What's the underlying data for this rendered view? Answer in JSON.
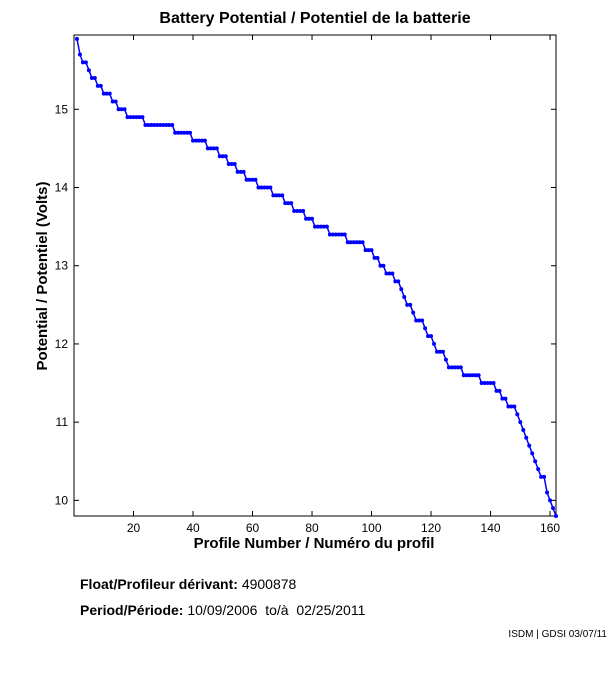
{
  "chart_data": {
    "type": "line",
    "title": "Battery Potential / Potentiel de la batterie",
    "xlabel": "Profile Number / Numéro du profil",
    "ylabel": "Potential / Potentiel (Volts)",
    "xlim": [
      0,
      162
    ],
    "ylim": [
      9.8,
      15.95
    ],
    "xticks": [
      20,
      40,
      60,
      80,
      100,
      120,
      140,
      160
    ],
    "yticks": [
      10,
      11,
      12,
      13,
      14,
      15
    ],
    "grid": false,
    "series_color": "#0000ff",
    "points": [
      [
        1,
        15.9
      ],
      [
        2,
        15.7
      ],
      [
        3,
        15.6
      ],
      [
        4,
        15.6
      ],
      [
        5,
        15.5
      ],
      [
        6,
        15.4
      ],
      [
        7,
        15.4
      ],
      [
        8,
        15.3
      ],
      [
        9,
        15.3
      ],
      [
        10,
        15.2
      ],
      [
        11,
        15.2
      ],
      [
        12,
        15.2
      ],
      [
        13,
        15.1
      ],
      [
        14,
        15.1
      ],
      [
        15,
        15.0
      ],
      [
        16,
        15.0
      ],
      [
        17,
        15.0
      ],
      [
        18,
        14.9
      ],
      [
        19,
        14.9
      ],
      [
        20,
        14.9
      ],
      [
        21,
        14.9
      ],
      [
        22,
        14.9
      ],
      [
        23,
        14.9
      ],
      [
        24,
        14.8
      ],
      [
        25,
        14.8
      ],
      [
        26,
        14.8
      ],
      [
        27,
        14.8
      ],
      [
        28,
        14.8
      ],
      [
        29,
        14.8
      ],
      [
        30,
        14.8
      ],
      [
        31,
        14.8
      ],
      [
        32,
        14.8
      ],
      [
        33,
        14.8
      ],
      [
        34,
        14.7
      ],
      [
        35,
        14.7
      ],
      [
        36,
        14.7
      ],
      [
        37,
        14.7
      ],
      [
        38,
        14.7
      ],
      [
        39,
        14.7
      ],
      [
        40,
        14.6
      ],
      [
        41,
        14.6
      ],
      [
        42,
        14.6
      ],
      [
        43,
        14.6
      ],
      [
        44,
        14.6
      ],
      [
        45,
        14.5
      ],
      [
        46,
        14.5
      ],
      [
        47,
        14.5
      ],
      [
        48,
        14.5
      ],
      [
        49,
        14.4
      ],
      [
        50,
        14.4
      ],
      [
        51,
        14.4
      ],
      [
        52,
        14.3
      ],
      [
        53,
        14.3
      ],
      [
        54,
        14.3
      ],
      [
        55,
        14.2
      ],
      [
        56,
        14.2
      ],
      [
        57,
        14.2
      ],
      [
        58,
        14.1
      ],
      [
        59,
        14.1
      ],
      [
        60,
        14.1
      ],
      [
        61,
        14.1
      ],
      [
        62,
        14.0
      ],
      [
        63,
        14.0
      ],
      [
        64,
        14.0
      ],
      [
        65,
        14.0
      ],
      [
        66,
        14.0
      ],
      [
        67,
        13.9
      ],
      [
        68,
        13.9
      ],
      [
        69,
        13.9
      ],
      [
        70,
        13.9
      ],
      [
        71,
        13.8
      ],
      [
        72,
        13.8
      ],
      [
        73,
        13.8
      ],
      [
        74,
        13.7
      ],
      [
        75,
        13.7
      ],
      [
        76,
        13.7
      ],
      [
        77,
        13.7
      ],
      [
        78,
        13.6
      ],
      [
        79,
        13.6
      ],
      [
        80,
        13.6
      ],
      [
        81,
        13.5
      ],
      [
        82,
        13.5
      ],
      [
        83,
        13.5
      ],
      [
        84,
        13.5
      ],
      [
        85,
        13.5
      ],
      [
        86,
        13.4
      ],
      [
        87,
        13.4
      ],
      [
        88,
        13.4
      ],
      [
        89,
        13.4
      ],
      [
        90,
        13.4
      ],
      [
        91,
        13.4
      ],
      [
        92,
        13.3
      ],
      [
        93,
        13.3
      ],
      [
        94,
        13.3
      ],
      [
        95,
        13.3
      ],
      [
        96,
        13.3
      ],
      [
        97,
        13.3
      ],
      [
        98,
        13.2
      ],
      [
        99,
        13.2
      ],
      [
        100,
        13.2
      ],
      [
        101,
        13.1
      ],
      [
        102,
        13.1
      ],
      [
        103,
        13.0
      ],
      [
        104,
        13.0
      ],
      [
        105,
        12.9
      ],
      [
        106,
        12.9
      ],
      [
        107,
        12.9
      ],
      [
        108,
        12.8
      ],
      [
        109,
        12.8
      ],
      [
        110,
        12.7
      ],
      [
        111,
        12.6
      ],
      [
        112,
        12.5
      ],
      [
        113,
        12.5
      ],
      [
        114,
        12.4
      ],
      [
        115,
        12.3
      ],
      [
        116,
        12.3
      ],
      [
        117,
        12.3
      ],
      [
        118,
        12.2
      ],
      [
        119,
        12.1
      ],
      [
        120,
        12.1
      ],
      [
        121,
        12.0
      ],
      [
        122,
        11.9
      ],
      [
        123,
        11.9
      ],
      [
        124,
        11.9
      ],
      [
        125,
        11.8
      ],
      [
        126,
        11.7
      ],
      [
        127,
        11.7
      ],
      [
        128,
        11.7
      ],
      [
        129,
        11.7
      ],
      [
        130,
        11.7
      ],
      [
        131,
        11.6
      ],
      [
        132,
        11.6
      ],
      [
        133,
        11.6
      ],
      [
        134,
        11.6
      ],
      [
        135,
        11.6
      ],
      [
        136,
        11.6
      ],
      [
        137,
        11.5
      ],
      [
        138,
        11.5
      ],
      [
        139,
        11.5
      ],
      [
        140,
        11.5
      ],
      [
        141,
        11.5
      ],
      [
        142,
        11.4
      ],
      [
        143,
        11.4
      ],
      [
        144,
        11.3
      ],
      [
        145,
        11.3
      ],
      [
        146,
        11.2
      ],
      [
        147,
        11.2
      ],
      [
        148,
        11.2
      ],
      [
        149,
        11.1
      ],
      [
        150,
        11.0
      ],
      [
        151,
        10.9
      ],
      [
        152,
        10.8
      ],
      [
        153,
        10.7
      ],
      [
        154,
        10.6
      ],
      [
        155,
        10.5
      ],
      [
        156,
        10.4
      ],
      [
        157,
        10.3
      ],
      [
        158,
        10.3
      ],
      [
        159,
        10.1
      ],
      [
        160,
        10.0
      ],
      [
        161,
        9.9
      ],
      [
        162,
        9.8
      ]
    ]
  },
  "info": {
    "float_label": "Float/Profileur dérivant:",
    "float_value": "4900878",
    "period_label": "Period/Période:",
    "period_value": "10/09/2006  to/à  02/25/2011"
  },
  "credit": "ISDM | GDSI 03/07/11"
}
